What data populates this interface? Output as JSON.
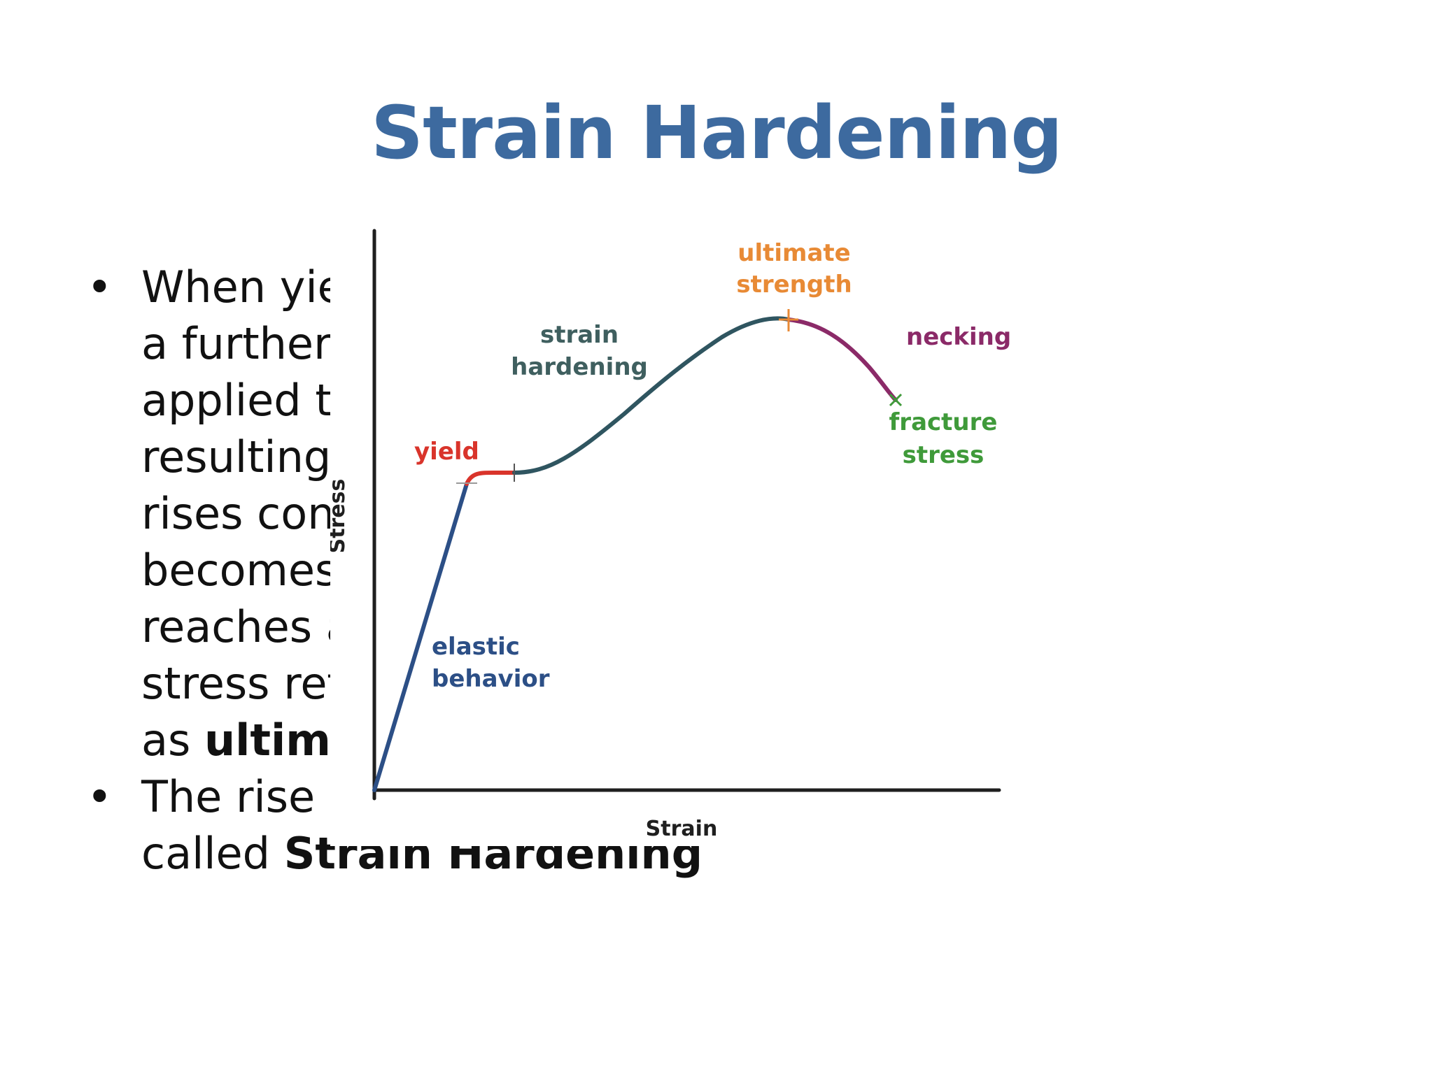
{
  "slide": {
    "title": "Strain Hardening",
    "bullets": [
      {
        "lines": [
          [
            {
              "text": "When yie",
              "bold": false
            }
          ],
          [
            {
              "text": "a further",
              "bold": false
            }
          ],
          [
            {
              "text": "applied t",
              "bold": false
            }
          ],
          [
            {
              "text": "resulting",
              "bold": false
            }
          ],
          [
            {
              "text": "rises con",
              "bold": false
            }
          ],
          [
            {
              "text": "becomes",
              "bold": false
            }
          ],
          [
            {
              "text": "reaches a",
              "bold": false
            }
          ],
          [
            {
              "text": "stress ref",
              "bold": false
            }
          ],
          [
            {
              "text": "as ",
              "bold": false
            },
            {
              "text": "ultima",
              "bold": true
            }
          ]
        ]
      },
      {
        "lines": [
          [
            {
              "text": "The rise i",
              "bold": false
            }
          ],
          [
            {
              "text": "called ",
              "bold": false
            },
            {
              "text": "Strain Hardening",
              "bold": true
            }
          ]
        ]
      }
    ]
  },
  "diagram": {
    "axis_labels": {
      "y": "Stress",
      "x": "Strain"
    },
    "regions": [
      {
        "id": "elastic",
        "lines": [
          "elastic",
          "behavior"
        ],
        "color": "#2c4f86"
      },
      {
        "id": "yield",
        "lines": [
          "yield"
        ],
        "color": "#d9342b"
      },
      {
        "id": "strain-hardening",
        "lines": [
          "strain",
          "hardening"
        ],
        "color": "#3f5f5f"
      },
      {
        "id": "ultimate-strength",
        "lines": [
          "ultimate",
          "strength"
        ],
        "color": "#e88a35"
      },
      {
        "id": "necking",
        "lines": [
          "necking"
        ],
        "color": "#8b2a68"
      },
      {
        "id": "fracture-stress",
        "lines": [
          "fracture",
          "stress"
        ],
        "color": "#3f9a3a"
      }
    ],
    "colors": {
      "axis": "#1f1f1f",
      "elastic": "#2c4f86",
      "yield": "#d9342b",
      "hardening": "#2f5560",
      "necking": "#8b2a68",
      "ultimate_marker": "#e88a35",
      "fracture_marker": "#3f9a3a"
    }
  }
}
